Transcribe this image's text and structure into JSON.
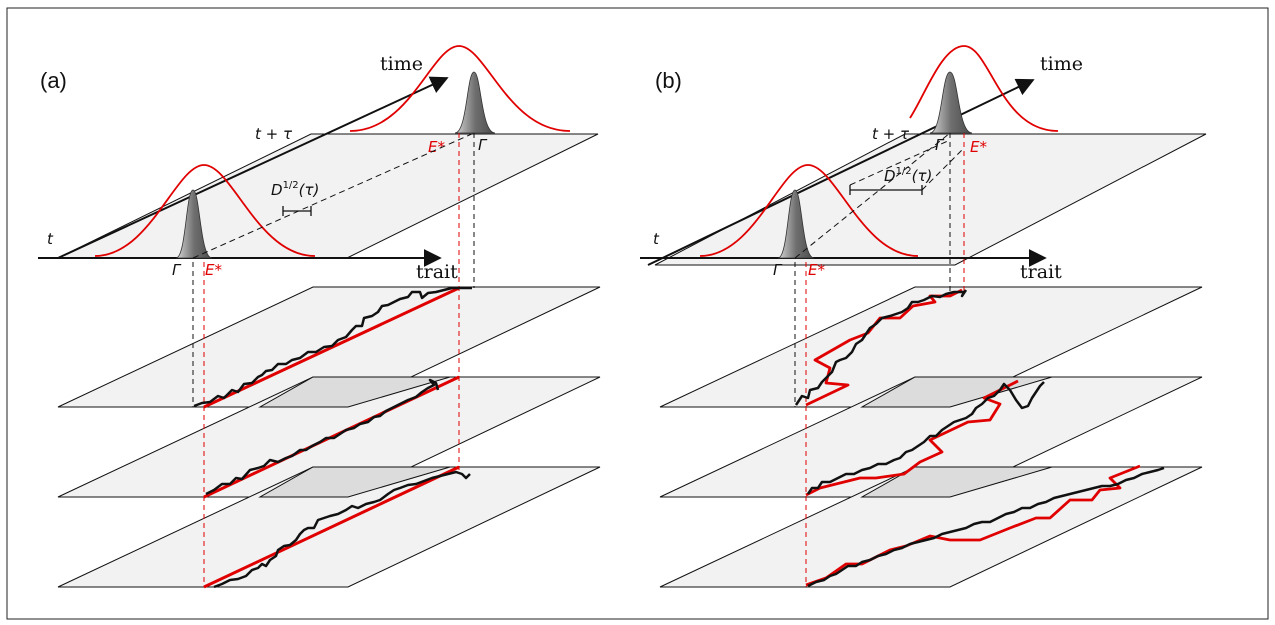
{
  "panels": [
    {
      "label": "(a)",
      "axis_time": "time",
      "axis_trait": "trait",
      "t_label": "t",
      "t_tau_label": "t + τ",
      "gamma_label": "Γ",
      "estar_label": "E*",
      "d_label": "D",
      "d_sup": "1/2",
      "d_arg": "(τ)"
    },
    {
      "label": "(b)",
      "axis_time": "time",
      "axis_trait": "trait",
      "t_label": "t",
      "t_tau_label": "t + τ",
      "gamma_label": "Γ",
      "estar_label": "E*",
      "d_label": "D",
      "d_sup": "1/2",
      "d_arg": "(τ)"
    }
  ],
  "colors": {
    "true_trajectory": "#e00000",
    "estimate_trajectory": "#111111",
    "plane_fill": "#f2f2f2",
    "gaussian_fill": "#8c8c8c"
  }
}
